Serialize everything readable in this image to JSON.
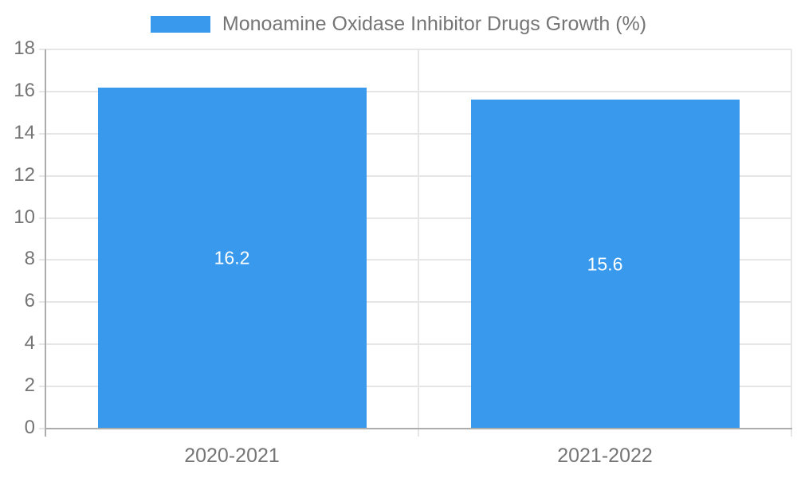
{
  "legend": {
    "label": "Monoamine Oxidase Inhibitor Drugs Growth (%)"
  },
  "chart_data": {
    "type": "bar",
    "categories": [
      "2020-2021",
      "2021-2022"
    ],
    "series": [
      {
        "name": "Monoamine Oxidase Inhibitor Drugs Growth (%)",
        "values": [
          16.2,
          15.6
        ]
      }
    ],
    "value_labels": [
      "16.2",
      "15.6"
    ],
    "title": "",
    "xlabel": "",
    "ylabel": "",
    "ylim": [
      0,
      18
    ],
    "ytick_step": 2,
    "ytick_labels": [
      "0",
      "2",
      "4",
      "6",
      "8",
      "10",
      "12",
      "14",
      "16",
      "18"
    ],
    "grid": true,
    "legend_position": "top",
    "colors": {
      "bar": "#3999EC",
      "grid": "#E6E6E6",
      "axis": "#ADADAD",
      "text": "#757575",
      "value_label": "#FFFFFF",
      "background": "#FFFFFF"
    }
  }
}
